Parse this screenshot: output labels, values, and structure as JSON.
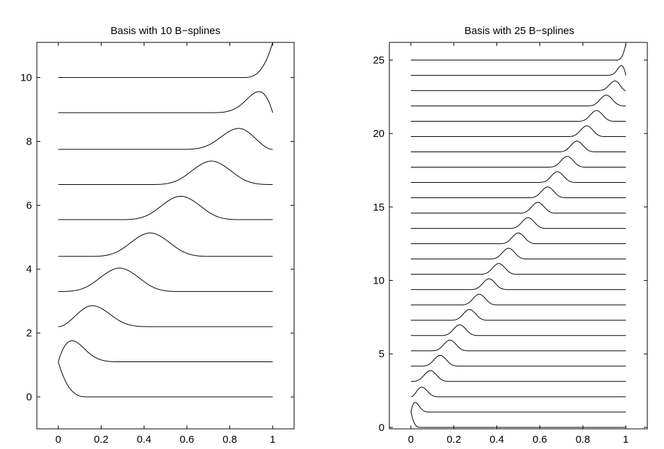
{
  "chart_data": [
    {
      "type": "line",
      "title": "Basis with 10 B−splines",
      "xlabel": "",
      "ylabel": "",
      "xlim": [
        -0.1,
        1.1
      ],
      "ylim": [
        -1,
        11.1
      ],
      "xticks": [
        0,
        0.2,
        0.4,
        0.6,
        0.8,
        1
      ],
      "xtick_labels": [
        "0",
        "0.2",
        "0.4",
        "0.6",
        "0.8",
        "1"
      ],
      "yticks": [
        0,
        2,
        4,
        6,
        8,
        10
      ],
      "ytick_labels": [
        "0",
        "2",
        "4",
        "6",
        "8",
        "10"
      ],
      "grid": false,
      "legend": "none",
      "basis_count": 10,
      "spline_degree": 3,
      "x_range": [
        0,
        1
      ],
      "curve_baselines": [
        0,
        1.1,
        2.2,
        3.3,
        4.4,
        5.55,
        6.65,
        7.75,
        8.9,
        10
      ],
      "curve_scale": 1.1,
      "series_color": "#000000"
    },
    {
      "type": "line",
      "title": "Basis with 25 B−splines",
      "xlabel": "",
      "ylabel": "",
      "xlim": [
        -0.1,
        1.1
      ],
      "ylim": [
        -0.1,
        26.2
      ],
      "xticks": [
        0,
        0.2,
        0.4,
        0.6,
        0.8,
        1
      ],
      "xtick_labels": [
        "0",
        "0.2",
        "0.4",
        "0.6",
        "0.8",
        "1"
      ],
      "yticks": [
        0,
        5,
        10,
        15,
        20,
        25
      ],
      "ytick_labels": [
        "0",
        "5",
        "10",
        "15",
        "20",
        "25"
      ],
      "grid": false,
      "legend": "none",
      "basis_count": 25,
      "spline_degree": 3,
      "x_range": [
        0,
        1
      ],
      "curve_baselines": [
        0,
        1.04,
        2.08,
        3.13,
        4.17,
        5.21,
        6.25,
        7.29,
        8.33,
        9.38,
        10.42,
        11.46,
        12.5,
        13.54,
        14.58,
        15.63,
        16.67,
        17.71,
        18.75,
        19.79,
        20.83,
        21.88,
        22.92,
        23.96,
        25
      ],
      "curve_scale": 1.1,
      "series_color": "#000000"
    }
  ]
}
